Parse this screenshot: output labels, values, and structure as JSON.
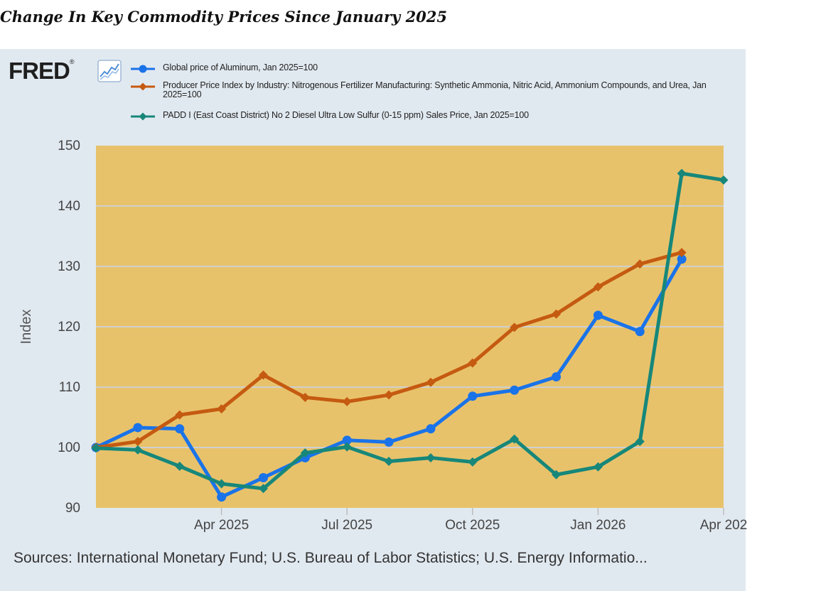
{
  "page_title": "Change In Key Commodity Prices Since January 2025",
  "brand": {
    "logo_text": "FRED",
    "logo_mark": "®"
  },
  "chart_data": {
    "type": "line",
    "ylabel": "Index",
    "ylim": [
      90,
      150
    ],
    "yticks": [
      90,
      100,
      110,
      120,
      130,
      140,
      150
    ],
    "xlim": [
      0,
      15
    ],
    "xticks": [
      {
        "x": 3,
        "label": "Apr 2025"
      },
      {
        "x": 6,
        "label": "Jul 2025"
      },
      {
        "x": 9,
        "label": "Oct 2025"
      },
      {
        "x": 12,
        "label": "Jan 2026"
      },
      {
        "x": 15,
        "label": "Apr 202"
      }
    ],
    "grid": true,
    "colors": {
      "plot_bg": "#e8c26b",
      "grid": "#cfcfcf",
      "panel_bg": "#e1e9f0"
    },
    "series": [
      {
        "key": "aluminum",
        "name": "Global price of Aluminum, Jan 2025=100",
        "color": "#1a73e8",
        "marker": "circle",
        "x": [
          0,
          1,
          2,
          3,
          4,
          5,
          6,
          7,
          8,
          9,
          10,
          11,
          12,
          13,
          14
        ],
        "values": [
          100,
          103.3,
          103.1,
          91.8,
          95,
          98.3,
          101.2,
          100.9,
          103.1,
          108.5,
          109.5,
          111.7,
          121.9,
          119.2,
          131.2
        ]
      },
      {
        "key": "fertilizer",
        "name": "Producer Price Index by Industry: Nitrogenous Fertilizer Manufacturing: Synthetic Ammonia, Nitric Acid, Ammonium Compounds, and Urea, Jan 2025=100",
        "color": "#c55a11",
        "marker": "diamond",
        "x": [
          0,
          1,
          2,
          3,
          4,
          5,
          6,
          7,
          8,
          9,
          10,
          11,
          12,
          13,
          14
        ],
        "values": [
          100,
          101,
          105.4,
          106.4,
          112,
          108.3,
          107.6,
          108.7,
          110.8,
          114,
          119.9,
          122.1,
          126.6,
          130.4,
          132.3
        ]
      },
      {
        "key": "diesel",
        "name": "PADD I (East Coast District) No 2 Diesel Ultra Low Sulfur (0-15 ppm) Sales Price, Jan 2025=100",
        "color": "#17877a",
        "marker": "diamond",
        "x": [
          0,
          1,
          2,
          3,
          4,
          5,
          6,
          7,
          8,
          9,
          10,
          11,
          12,
          13,
          14,
          15
        ],
        "values": [
          99.9,
          99.6,
          96.9,
          94,
          93.2,
          99.1,
          100.1,
          97.7,
          98.3,
          97.6,
          101.4,
          95.5,
          96.8,
          101,
          145.4,
          144.3
        ]
      }
    ]
  },
  "source_note": "Sources: International Monetary Fund; U.S. Bureau of Labor Statistics; U.S. Energy Informatio..."
}
